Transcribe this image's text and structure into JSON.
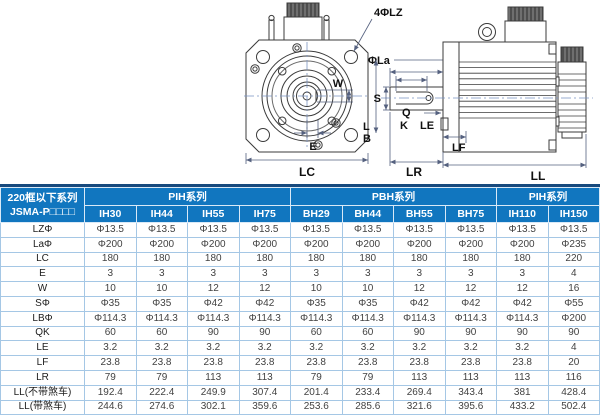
{
  "drawing": {
    "labels": {
      "bolt_holes": "4ΦLZ",
      "flange_pilot": "ΦLa",
      "keyway_width": "W",
      "shaft_offset_e": "E",
      "frame_size": "LC",
      "shaft_dia": "S",
      "keyway_length_q": "Q",
      "key_dim_k": "K",
      "dim_l": "L",
      "dim_b": "B",
      "flange_step_le": "LE",
      "flange_thickness_lf": "LF",
      "shaft_ext_lr": "LR",
      "body_length_ll": "LL"
    }
  },
  "table": {
    "corner_header": {
      "line1": "220框以下系列",
      "line2": "JSMA-P□□□□"
    },
    "groups": [
      {
        "label": "PIH系列",
        "span": 4
      },
      {
        "label": "PBH系列",
        "span": 4
      },
      {
        "label": "PIH系列",
        "span": 2
      }
    ],
    "columns": [
      "IH30",
      "IH44",
      "IH55",
      "IH75",
      "BH29",
      "BH44",
      "BH55",
      "BH75",
      "IH110",
      "IH150"
    ],
    "rows": [
      {
        "label": "LZΦ",
        "values": [
          "Φ13.5",
          "Φ13.5",
          "Φ13.5",
          "Φ13.5",
          "Φ13.5",
          "Φ13.5",
          "Φ13.5",
          "Φ13.5",
          "Φ13.5",
          "Φ13.5"
        ]
      },
      {
        "label": "LaΦ",
        "values": [
          "Φ200",
          "Φ200",
          "Φ200",
          "Φ200",
          "Φ200",
          "Φ200",
          "Φ200",
          "Φ200",
          "Φ200",
          "Φ235"
        ]
      },
      {
        "label": "LC",
        "values": [
          "180",
          "180",
          "180",
          "180",
          "180",
          "180",
          "180",
          "180",
          "180",
          "220"
        ]
      },
      {
        "label": "E",
        "values": [
          "3",
          "3",
          "3",
          "3",
          "3",
          "3",
          "3",
          "3",
          "3",
          "4"
        ]
      },
      {
        "label": "W",
        "values": [
          "10",
          "10",
          "12",
          "12",
          "10",
          "10",
          "12",
          "12",
          "12",
          "16"
        ]
      },
      {
        "label": "SΦ",
        "values": [
          "Φ35",
          "Φ35",
          "Φ42",
          "Φ42",
          "Φ35",
          "Φ35",
          "Φ42",
          "Φ42",
          "Φ42",
          "Φ55"
        ]
      },
      {
        "label": "LBΦ",
        "values": [
          "Φ114.3",
          "Φ114.3",
          "Φ114.3",
          "Φ114.3",
          "Φ114.3",
          "Φ114.3",
          "Φ114.3",
          "Φ114.3",
          "Φ114.3",
          "Φ200"
        ]
      },
      {
        "label": "QK",
        "values": [
          "60",
          "60",
          "90",
          "90",
          "60",
          "60",
          "90",
          "90",
          "90",
          "90"
        ]
      },
      {
        "label": "LE",
        "values": [
          "3.2",
          "3.2",
          "3.2",
          "3.2",
          "3.2",
          "3.2",
          "3.2",
          "3.2",
          "3.2",
          "4"
        ]
      },
      {
        "label": "LF",
        "values": [
          "23.8",
          "23.8",
          "23.8",
          "23.8",
          "23.8",
          "23.8",
          "23.8",
          "23.8",
          "23.8",
          "20"
        ]
      },
      {
        "label": "LR",
        "values": [
          "79",
          "79",
          "113",
          "113",
          "79",
          "79",
          "113",
          "113",
          "113",
          "116"
        ]
      },
      {
        "label": "LL(不带煞车)",
        "values": [
          "192.4",
          "222.4",
          "249.9",
          "307.4",
          "201.4",
          "233.4",
          "269.4",
          "343.4",
          "381",
          "428.4"
        ]
      },
      {
        "label": "LL(带煞车)",
        "values": [
          "244.6",
          "274.6",
          "302.1",
          "359.6",
          "253.6",
          "285.6",
          "321.6",
          "395.6",
          "433.2",
          "502.4"
        ]
      }
    ]
  },
  "colors": {
    "header_blue": "#1176bf",
    "table_top_border": "#17497d",
    "grid_line": "#a5c7e5",
    "object_line": "#3b3b3b",
    "dim_line": "#55617f",
    "centerline": "#7a93c2"
  }
}
